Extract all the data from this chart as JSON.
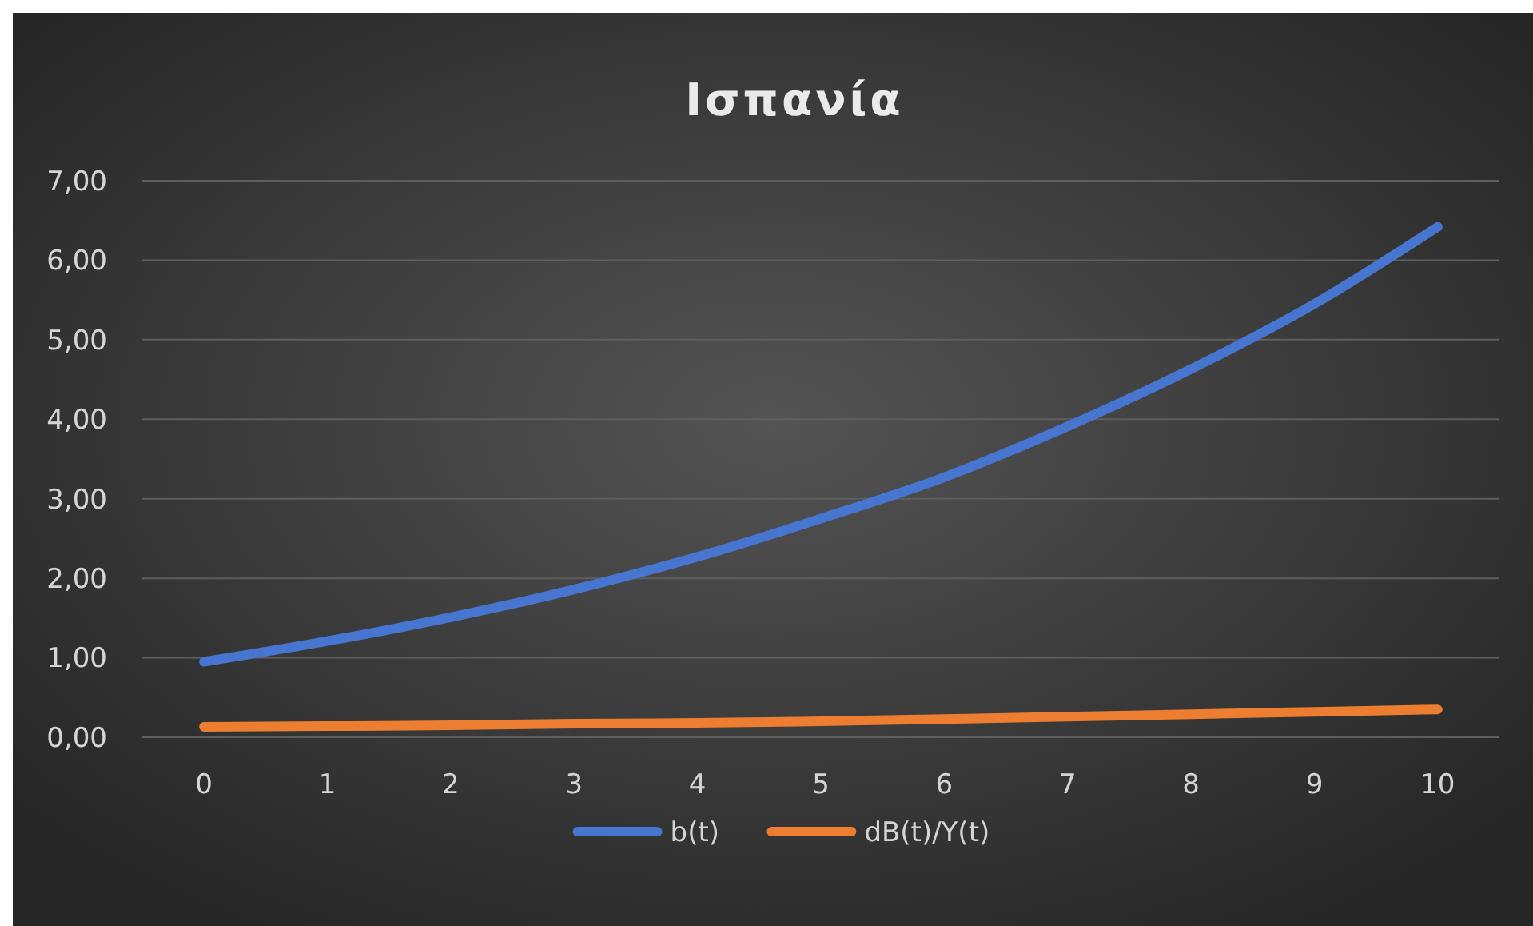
{
  "chart_data": {
    "type": "line",
    "title": "Ισπανία",
    "categories": [
      "0",
      "1",
      "2",
      "3",
      "4",
      "5",
      "6",
      "7",
      "8",
      "9",
      "10"
    ],
    "series": [
      {
        "name": "b(t)",
        "color": "#4676d0",
        "values": [
          0.95,
          1.21,
          1.51,
          1.86,
          2.27,
          2.75,
          3.27,
          3.91,
          4.63,
          5.45,
          6.42
        ]
      },
      {
        "name": "dB(t)/Y(t)",
        "color": "#ed7d31",
        "values": [
          0.13,
          0.14,
          0.15,
          0.17,
          0.18,
          0.2,
          0.23,
          0.26,
          0.29,
          0.32,
          0.35
        ]
      }
    ],
    "ylim": [
      0,
      7
    ],
    "yticks": [
      {
        "value": 0,
        "label": "0,00"
      },
      {
        "value": 1,
        "label": "1,00"
      },
      {
        "value": 2,
        "label": "2,00"
      },
      {
        "value": 3,
        "label": "3,00"
      },
      {
        "value": 4,
        "label": "4,00"
      },
      {
        "value": 5,
        "label": "5,00"
      },
      {
        "value": 6,
        "label": "6,00"
      },
      {
        "value": 7,
        "label": "7,00"
      }
    ],
    "grid": "y",
    "legend": "bottom",
    "line_style": "solid",
    "marker": "none"
  }
}
